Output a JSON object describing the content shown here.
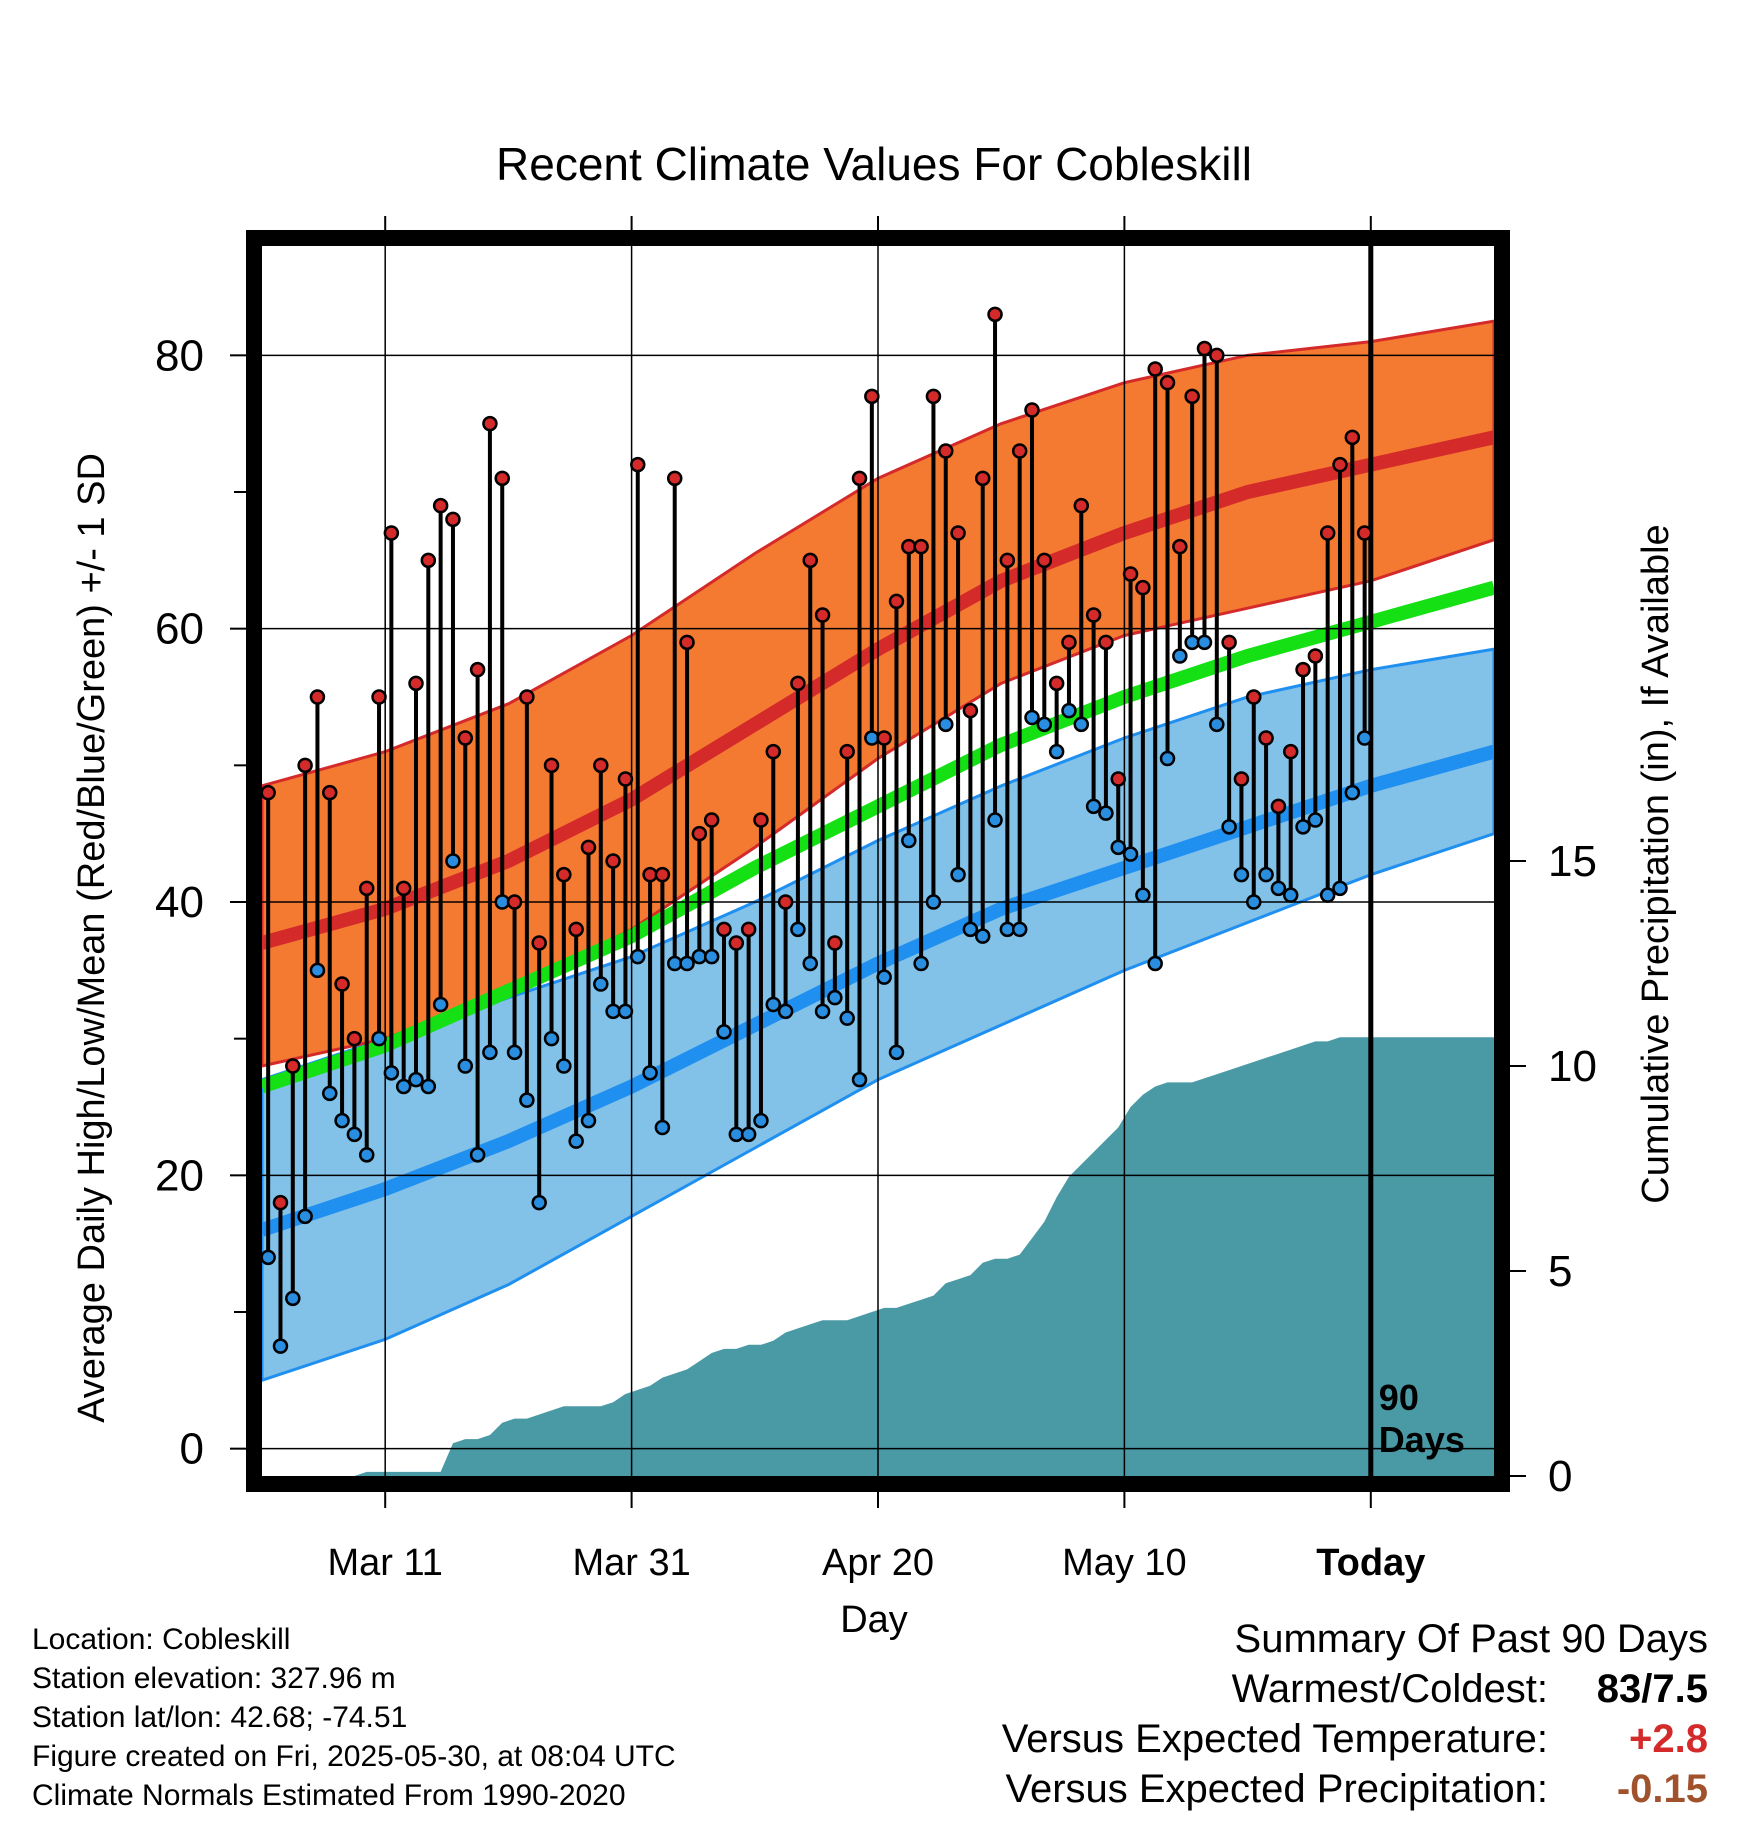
{
  "chart_data": {
    "type": "line",
    "title": "Recent Climate Values For Cobleskill",
    "xlabel": "Day",
    "ylabel_left": "Average Daily High/Low/Mean (Red/Blue/Green) +/- 1 SD",
    "ylabel_right": "Cumulative Precipitation (in), If Available",
    "x_ticks": [
      "Mar 11",
      "Mar 31",
      "Apr 20",
      "May 10",
      "Today"
    ],
    "y_ticks_left": [
      0,
      20,
      40,
      60,
      80
    ],
    "y_ticks_right": [
      0,
      5,
      10,
      15
    ],
    "ylim_left": [
      -2,
      88
    ],
    "ylim_right": [
      0,
      30
    ],
    "x_range_days": [
      -90,
      10
    ],
    "today_marker_label": "90 Days",
    "grid": true,
    "colors": {
      "high_band": "#f47a32",
      "high_mean": "#d42a2a",
      "low_band": "#82c1e8",
      "low_mean": "#1f8ff0",
      "avg_mean": "#14e014",
      "precip": "#4a9aa6",
      "high_point": "#d42a2a",
      "low_point": "#2a8ee0"
    },
    "normals": {
      "days": [
        -90,
        -80,
        -70,
        -60,
        -50,
        -40,
        -30,
        -20,
        -10,
        0,
        10
      ],
      "high_mean": [
        37,
        39.5,
        43,
        47.5,
        53,
        58.5,
        63.5,
        67,
        70,
        72,
        74
      ],
      "high_upper": [
        48.5,
        51,
        54.5,
        59.5,
        65.5,
        71,
        75,
        78,
        80,
        81,
        82.5
      ],
      "high_lower": [
        28,
        30,
        33.5,
        38,
        44,
        50.5,
        56,
        59.5,
        61.5,
        63.5,
        66.5
      ],
      "low_mean": [
        16,
        19,
        22.5,
        26.5,
        31,
        35.5,
        39.5,
        42.5,
        45.5,
        48.5,
        51
      ],
      "low_upper": [
        27,
        30,
        33,
        36,
        40,
        44.5,
        48.5,
        52,
        55,
        57,
        58.5
      ],
      "low_lower": [
        5,
        8,
        12,
        17,
        22,
        27,
        31,
        35,
        38.5,
        42,
        45
      ],
      "avg_mean": [
        26.5,
        29.5,
        33.5,
        37.5,
        42.5,
        47,
        51.5,
        55,
        58,
        60.5,
        63
      ]
    },
    "daily_high": [
      48,
      18,
      28,
      50,
      55,
      48,
      34,
      30,
      41,
      55,
      67,
      41,
      56,
      65,
      69,
      68,
      52,
      57,
      75,
      71,
      40,
      55,
      37,
      50,
      42,
      38,
      44,
      50,
      43,
      49,
      72,
      42,
      42,
      71,
      59,
      45,
      46,
      38,
      37,
      38,
      46,
      51,
      40,
      56,
      65,
      61,
      37,
      51,
      71,
      77,
      52,
      62,
      66,
      66,
      77,
      73,
      67,
      54,
      71,
      83,
      65,
      73,
      76,
      65,
      56,
      59,
      69,
      61,
      59,
      49,
      64,
      63,
      79,
      78,
      66,
      77,
      80.5,
      80,
      59,
      49,
      55,
      52,
      47,
      51,
      57,
      58,
      67,
      72,
      74,
      67
    ],
    "daily_low": [
      14,
      7.5,
      11,
      17,
      35,
      26,
      24,
      23,
      21.5,
      30,
      27.5,
      26.5,
      27,
      26.5,
      32.5,
      43,
      28,
      21.5,
      29,
      40,
      29,
      25.5,
      18,
      30,
      28,
      22.5,
      24,
      34,
      32,
      32,
      36,
      27.5,
      23.5,
      35.5,
      35.5,
      36,
      36,
      30.5,
      23,
      23,
      24,
      32.5,
      32,
      38,
      35.5,
      32,
      33,
      31.5,
      27,
      52,
      34.5,
      29,
      44.5,
      35.5,
      40,
      53,
      42,
      38,
      37.5,
      46,
      38,
      38,
      53.5,
      53,
      51,
      54,
      53,
      47,
      46.5,
      44,
      43.5,
      40.5,
      35.5,
      50.5,
      58,
      59,
      59,
      53,
      45.5,
      42,
      40,
      42,
      41,
      40.5,
      45.5,
      46,
      40.5,
      41,
      48,
      52
    ],
    "precip_cum": [
      0,
      0,
      0,
      0,
      0,
      0,
      0,
      0,
      0.1,
      0.1,
      0.1,
      0.1,
      0.1,
      0.1,
      0.1,
      0.8,
      0.9,
      0.9,
      1.0,
      1.3,
      1.4,
      1.4,
      1.5,
      1.6,
      1.7,
      1.7,
      1.7,
      1.7,
      1.8,
      2.0,
      2.1,
      2.2,
      2.4,
      2.5,
      2.6,
      2.8,
      3.0,
      3.1,
      3.1,
      3.2,
      3.2,
      3.3,
      3.5,
      3.6,
      3.7,
      3.8,
      3.8,
      3.8,
      3.9,
      4.0,
      4.1,
      4.1,
      4.2,
      4.3,
      4.4,
      4.7,
      4.8,
      4.9,
      5.2,
      5.3,
      5.3,
      5.4,
      5.8,
      6.2,
      6.8,
      7.3,
      7.6,
      7.9,
      8.2,
      8.5,
      9.0,
      9.3,
      9.5,
      9.6,
      9.6,
      9.6,
      9.7,
      9.8,
      9.9,
      10.0,
      10.1,
      10.2,
      10.3,
      10.4,
      10.5,
      10.6,
      10.6,
      10.7,
      10.7,
      10.7,
      10.7
    ]
  },
  "footer": {
    "location": "Location: Cobleskill",
    "elevation": "Station elevation: 327.96 m",
    "latlon": "Station lat/lon: 42.68; -74.51",
    "created": "Figure created on Fri, 2025-05-30, at 08:04 UTC",
    "normals": "Climate Normals Estimated From 1990-2020"
  },
  "summary": {
    "heading": "Summary Of Past 90 Days",
    "warmest_coldest_label": "Warmest/Coldest:",
    "warmest_coldest_value": "83/7.5",
    "temp_label": "Versus Expected Temperature:",
    "temp_value": "+2.8",
    "temp_color": "#d42a2a",
    "precip_label": "Versus Expected Precipitation:",
    "precip_value": "-0.15",
    "precip_color": "#a0522d"
  }
}
